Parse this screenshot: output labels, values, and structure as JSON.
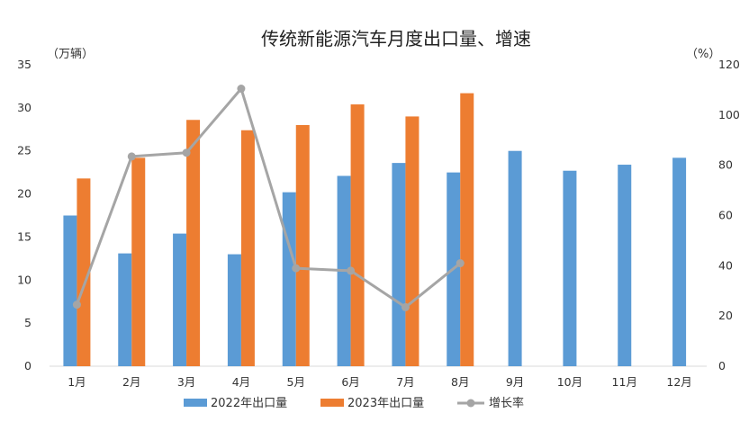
{
  "chart_data": {
    "type": "bar",
    "title": "传统新能源汽车月度出口量、增速",
    "categories": [
      "1月",
      "2月",
      "3月",
      "4月",
      "5月",
      "6月",
      "7月",
      "8月",
      "9月",
      "10月",
      "11月",
      "12月"
    ],
    "left_axis": {
      "unit": "（万辆）",
      "ylim": [
        0,
        35
      ],
      "ticks": [
        0,
        5,
        10,
        15,
        20,
        25,
        30,
        35
      ]
    },
    "right_axis": {
      "unit": "（%）",
      "ylim": [
        0,
        120
      ],
      "ticks": [
        0,
        20,
        40,
        60,
        80,
        100,
        120
      ]
    },
    "series": [
      {
        "name": "2022年出口量",
        "type": "bar",
        "axis": "left",
        "color": "#5B9BD5",
        "values": [
          17.5,
          13.1,
          15.4,
          13.0,
          20.2,
          22.1,
          23.6,
          22.5,
          25.0,
          22.7,
          23.4,
          24.2
        ]
      },
      {
        "name": "2023年出口量",
        "type": "bar",
        "axis": "left",
        "color": "#ED7D31",
        "values": [
          21.8,
          24.2,
          28.6,
          27.4,
          28.0,
          30.4,
          29.0,
          31.7,
          null,
          null,
          null,
          null
        ]
      },
      {
        "name": "增长率",
        "type": "line",
        "axis": "right",
        "color": "#A5A5A5",
        "values": [
          24.5,
          83.5,
          85.0,
          110.5,
          39.0,
          38.0,
          23.5,
          41.0,
          null,
          null,
          null,
          null
        ]
      }
    ],
    "grid": false,
    "legend_position": "bottom"
  }
}
